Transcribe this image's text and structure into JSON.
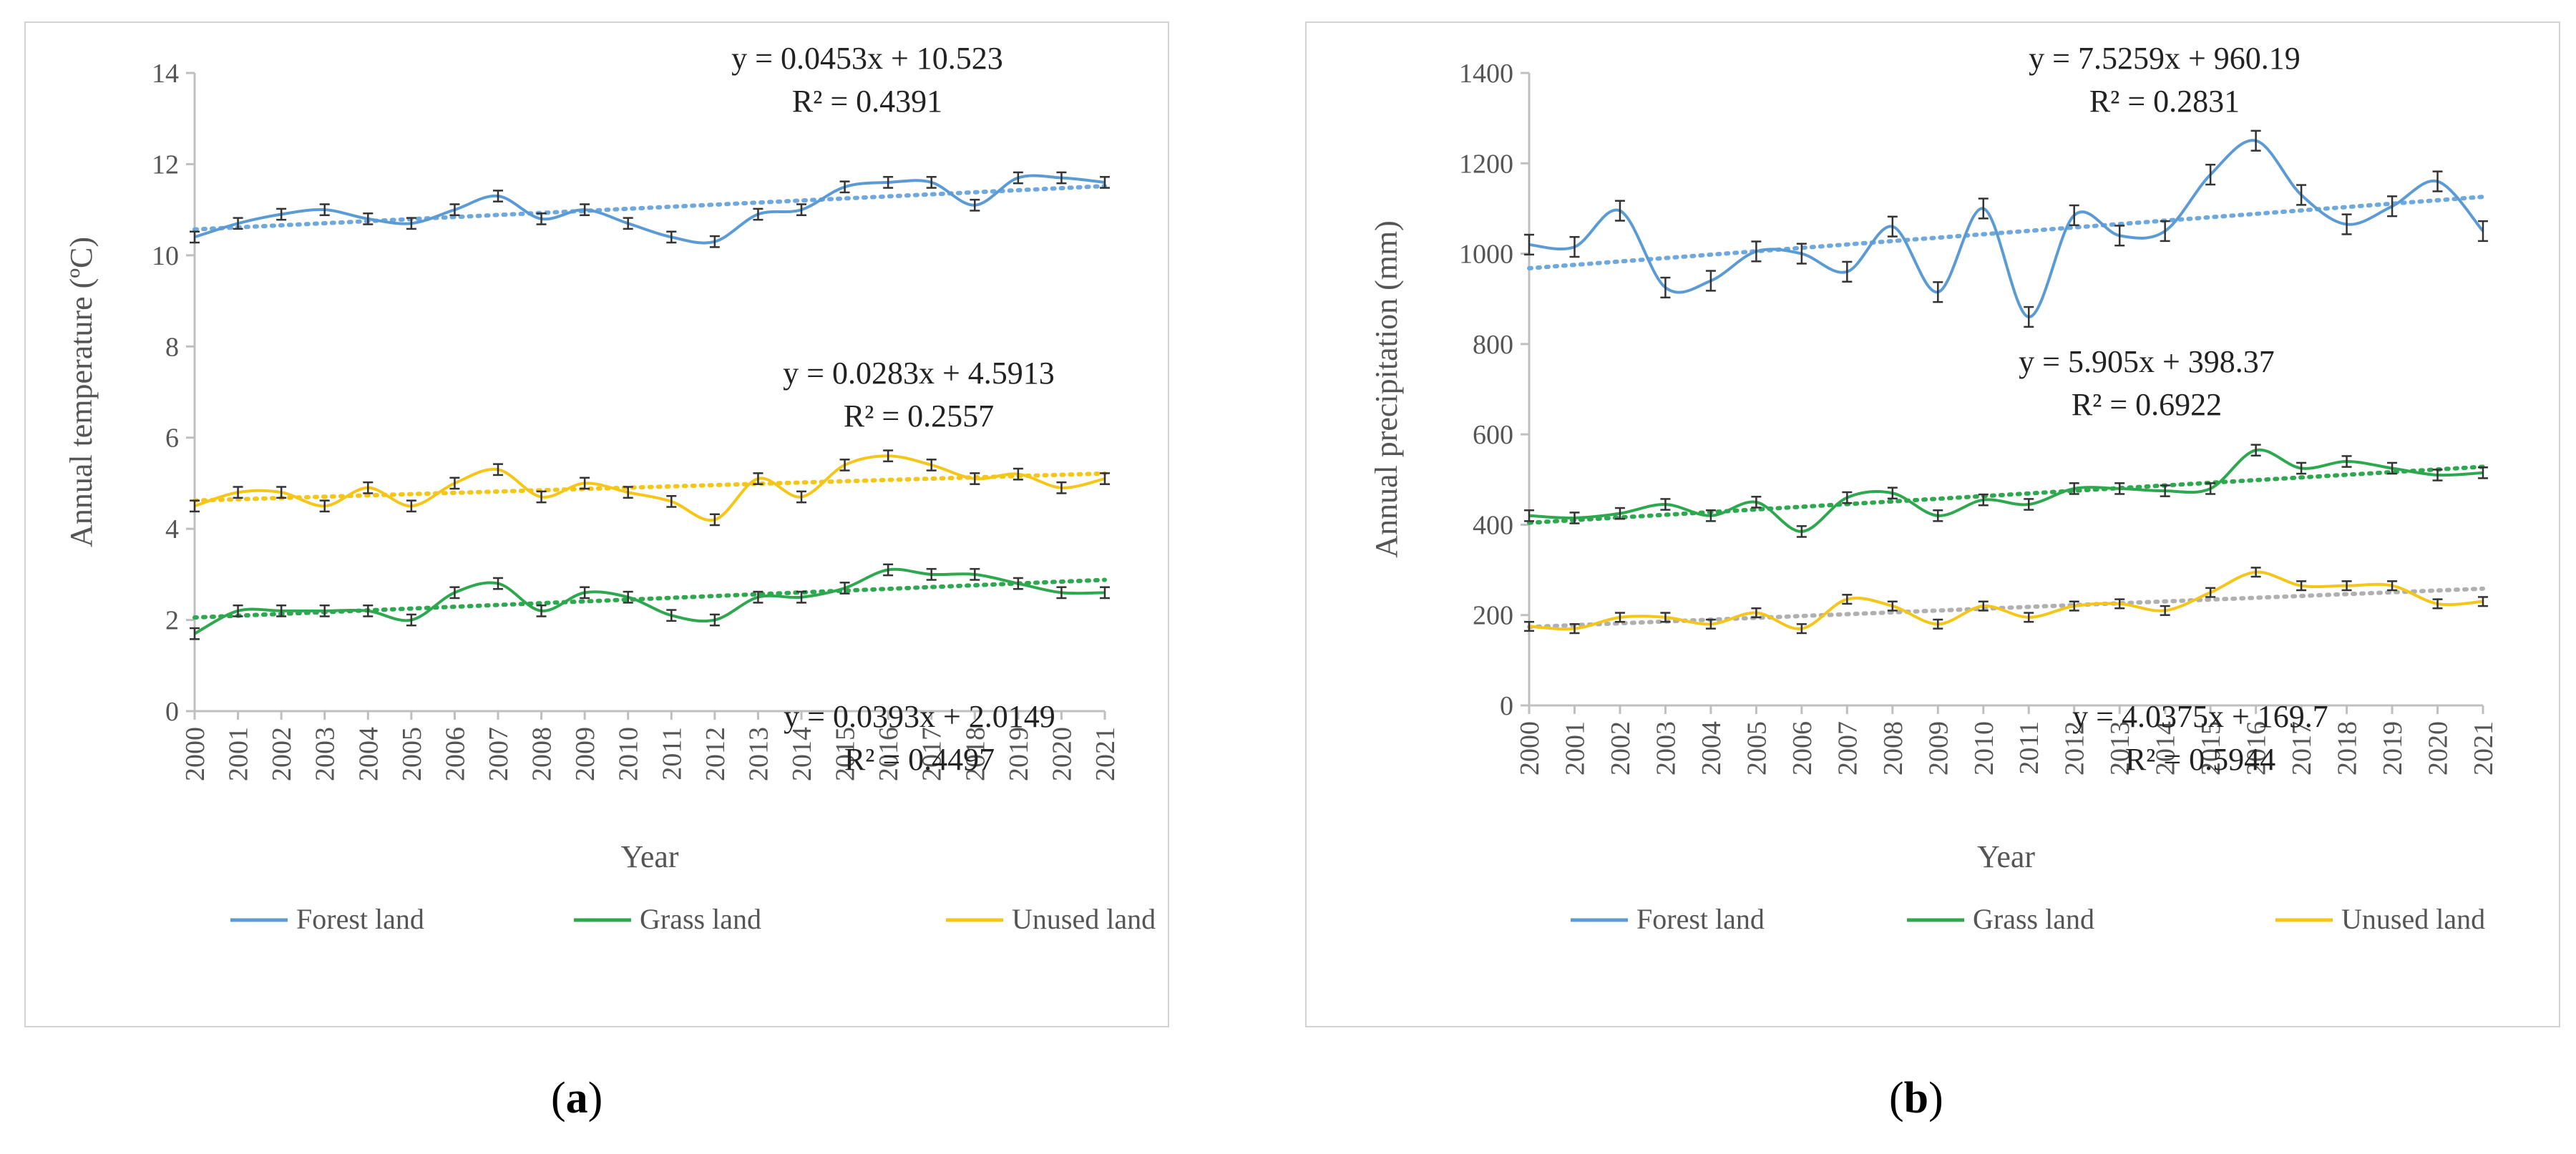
{
  "captions": {
    "a": "a",
    "b": "b"
  },
  "colors": {
    "forest": "#5b9bd5",
    "grass": "#2ea84f",
    "unused": "#f5c518",
    "axis": "#bfbfbf",
    "text": "#555555",
    "trend": "#6fa8dc"
  },
  "chart_data": [
    {
      "id": "a",
      "type": "line",
      "title": "",
      "xlabel": "Year",
      "ylabel": "Annual temperature (ºC)",
      "ylim": [
        0,
        14
      ],
      "yticks": [
        "0",
        "2",
        "4",
        "6",
        "8",
        "10",
        "12",
        "14"
      ],
      "categories": [
        "2000",
        "2001",
        "2002",
        "2003",
        "2004",
        "2005",
        "2006",
        "2007",
        "2008",
        "2009",
        "2010",
        "2011",
        "2012",
        "2013",
        "2014",
        "2015",
        "2016",
        "2017",
        "2018",
        "2019",
        "2020",
        "2021"
      ],
      "series": [
        {
          "key": "forest",
          "name": "Forest land",
          "values": [
            10.4,
            10.7,
            10.9,
            11.0,
            10.8,
            10.7,
            11.0,
            11.3,
            10.8,
            11.0,
            10.7,
            10.4,
            10.3,
            10.9,
            11.0,
            11.5,
            11.6,
            11.6,
            11.1,
            11.7,
            11.7,
            11.6
          ],
          "error": 0.12,
          "trend": [
            10.568,
            11.519
          ],
          "equation": "y = 0.0453x + 10.523",
          "r2": "R² = 0.4391"
        },
        {
          "key": "unused",
          "name": "Unused land",
          "values": [
            4.5,
            4.8,
            4.8,
            4.5,
            4.9,
            4.5,
            5.0,
            5.3,
            4.7,
            5.0,
            4.8,
            4.6,
            4.2,
            5.1,
            4.7,
            5.4,
            5.6,
            5.4,
            5.1,
            5.2,
            4.9,
            5.1
          ],
          "error": 0.12,
          "trend": [
            4.62,
            5.214
          ],
          "equation": "y = 0.0283x + 4.5913",
          "r2": "R² = 0.2557"
        },
        {
          "key": "grass",
          "name": "Grass land",
          "values": [
            1.7,
            2.2,
            2.2,
            2.2,
            2.2,
            2.0,
            2.6,
            2.8,
            2.2,
            2.6,
            2.5,
            2.1,
            2.0,
            2.5,
            2.5,
            2.7,
            3.1,
            3.0,
            3.0,
            2.8,
            2.6,
            2.6
          ],
          "error": 0.12,
          "trend": [
            2.054,
            2.88
          ],
          "equation": "y = 0.0393x + 2.0149",
          "r2": "R² = 0.4497"
        }
      ],
      "legend": [
        "Forest land",
        "Grass land",
        "Unused land"
      ]
    },
    {
      "id": "b",
      "type": "line",
      "title": "",
      "xlabel": "Year",
      "ylabel": "Annual precipitation (mm)",
      "ylim": [
        0,
        1400
      ],
      "yticks": [
        "0",
        "200",
        "400",
        "600",
        "800",
        "1000",
        "1200",
        "1400"
      ],
      "categories": [
        "2000",
        "2001",
        "2002",
        "2003",
        "2004",
        "2005",
        "2006",
        "2007",
        "2008",
        "2009",
        "2010",
        "2011",
        "2012",
        "2013",
        "2014",
        "2015",
        "2016",
        "2017",
        "2018",
        "2019",
        "2020",
        "2021"
      ],
      "series": [
        {
          "key": "forest",
          "name": "Forest land",
          "values": [
            1020,
            1015,
            1095,
            925,
            940,
            1005,
            1000,
            960,
            1060,
            915,
            1100,
            860,
            1085,
            1040,
            1050,
            1175,
            1250,
            1130,
            1065,
            1105,
            1160,
            1050
          ],
          "error": 22,
          "trend": [
            967.7,
            1125.8
          ],
          "equation": "y = 7.5259x + 960.19",
          "r2": "R² = 0.2831"
        },
        {
          "key": "grass",
          "name": "Grass land",
          "values": [
            420,
            415,
            425,
            445,
            420,
            450,
            385,
            460,
            470,
            420,
            455,
            445,
            480,
            480,
            475,
            480,
            565,
            525,
            540,
            525,
            510,
            515
          ],
          "error": 12,
          "trend": [
            404.3,
            528.3
          ],
          "equation": "y = 5.905x + 398.37",
          "r2": "R² = 0.6922"
        },
        {
          "key": "unused",
          "name": "Unused land",
          "values": [
            175,
            170,
            195,
            195,
            180,
            205,
            170,
            235,
            220,
            180,
            220,
            195,
            220,
            225,
            210,
            250,
            295,
            265,
            265,
            265,
            225,
            230
          ],
          "error": 10,
          "trend": [
            173.7,
            258.5
          ],
          "equation": "y = 4.0375x + 169.7",
          "r2": "R² = 0.5944"
        }
      ],
      "legend": [
        "Forest land",
        "Grass land",
        "Unused land"
      ]
    }
  ]
}
